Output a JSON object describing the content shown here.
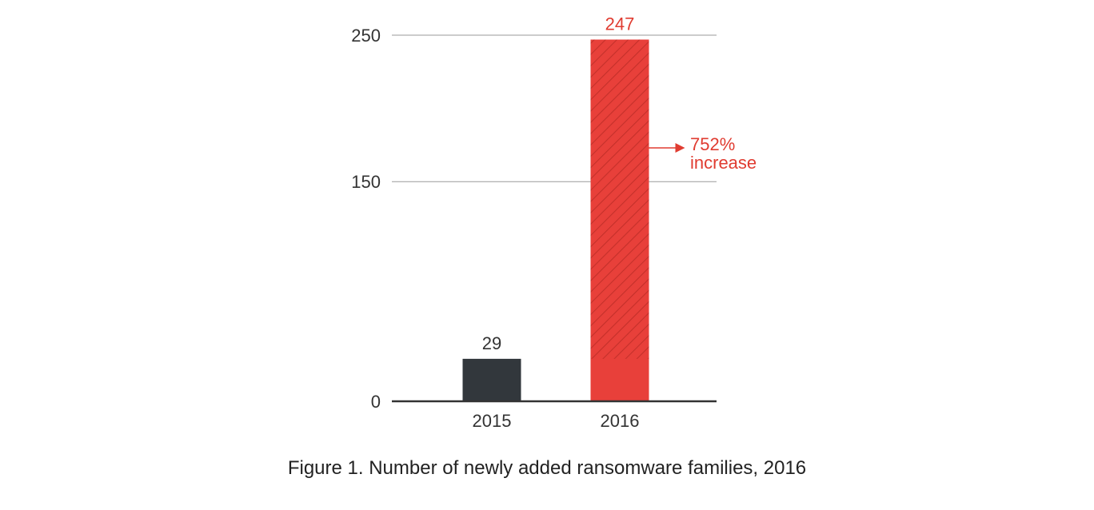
{
  "caption": "Figure 1. Number of newly added ransomware families, 2016",
  "colors": {
    "bar_2015": "#32373c",
    "bar_2016": "#e8403a",
    "hatch": "#c4302a",
    "accent_text": "#e03c31",
    "axis": "#333333",
    "grid": "#999999"
  },
  "chart_data": {
    "type": "bar",
    "categories": [
      "2015",
      "2016"
    ],
    "values": [
      29,
      247
    ],
    "value_labels": [
      "29",
      "247"
    ],
    "title": "",
    "xlabel": "",
    "ylabel": "",
    "ylim": [
      0,
      250
    ],
    "yticks": [
      0,
      150,
      250
    ],
    "ytick_labels": [
      "0",
      "150",
      "250"
    ],
    "grid": true,
    "annotation": {
      "line1": "752%",
      "line2": "increase"
    },
    "hatched_increase": true
  }
}
